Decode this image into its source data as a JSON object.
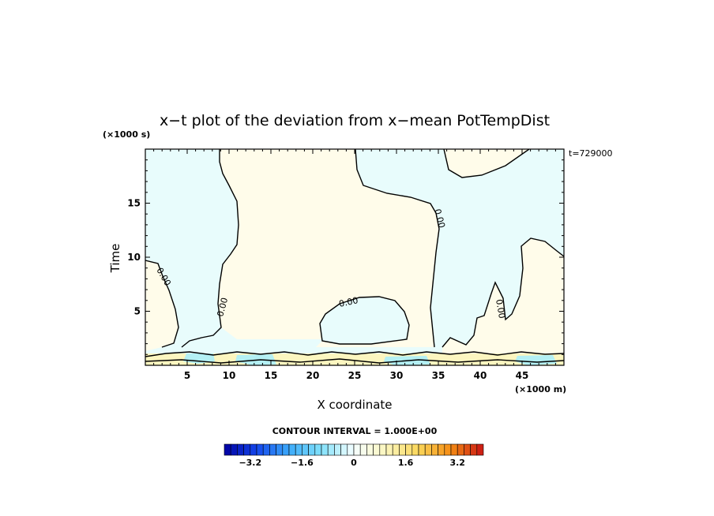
{
  "chart_data": {
    "type": "heatmap",
    "title": "x−t plot of the deviation from x−mean PotTempDist",
    "xlabel": "X coordinate",
    "ylabel": "Time",
    "x_unit": "(×1000 m)",
    "y_unit": "(×1000 s)",
    "time_stamp": "t=729000",
    "xlim": [
      0,
      50
    ],
    "ylim": [
      0,
      20
    ],
    "x_ticks": [
      5,
      10,
      15,
      20,
      25,
      30,
      35,
      40,
      45
    ],
    "y_ticks": [
      5,
      10,
      15
    ],
    "contour_interval_text": "CONTOUR INTERVAL = 1.000E+00",
    "contour_label": "0.00",
    "colorbar": {
      "min": -4,
      "max": 4,
      "step": 0.2,
      "tick_values": [
        -3.2,
        -1.6,
        0,
        1.6,
        3.2
      ],
      "tick_labels": [
        "−3.2",
        "−1.6",
        "0",
        "1.6",
        "3.2"
      ]
    },
    "regions": [
      {
        "name": "negative",
        "value": -0.2,
        "color": "#e8fcfc"
      },
      {
        "name": "positive",
        "value": 0.2,
        "color": "#fffcea"
      },
      {
        "name": "near-surface negative",
        "value": -0.8,
        "color": "#b4f0f4"
      },
      {
        "name": "near-surface positive",
        "value": 0.8,
        "color": "#fcf6c0"
      }
    ]
  }
}
